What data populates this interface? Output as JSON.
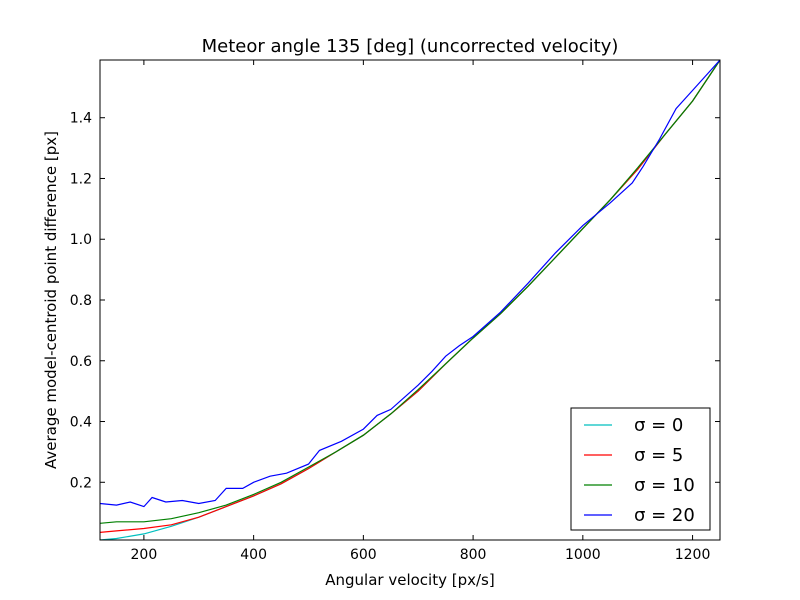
{
  "chart_data": {
    "type": "line",
    "title": "Meteor angle 135 [deg] (uncorrected velocity)",
    "xlabel": "Angular velocity [px/s]",
    "ylabel": "Average model-centroid point difference [px]",
    "xlim": [
      120,
      1250
    ],
    "ylim": [
      0.01,
      1.59
    ],
    "xticks": [
      200,
      400,
      600,
      800,
      1000,
      1200
    ],
    "yticks": [
      0.2,
      0.4,
      0.6,
      0.8,
      1.0,
      1.2,
      1.4
    ],
    "xtick_labels": [
      "200",
      "400",
      "600",
      "800",
      "1000",
      "1200"
    ],
    "ytick_labels": [
      "0.2",
      "0.4",
      "0.6",
      "0.8",
      "1.0",
      "1.2",
      "1.4"
    ],
    "grid": false,
    "legend_position": "lower-right",
    "colors": {
      "sigma0": "#00bfbf",
      "sigma5": "#ff0000",
      "sigma10": "#008000",
      "sigma20": "#0000ff"
    },
    "series": [
      {
        "name": "σ = 0",
        "color": "#00bfbf",
        "x": [
          120,
          150,
          200,
          250,
          300,
          350,
          400,
          450,
          500,
          550,
          600,
          650,
          700,
          750,
          800,
          850,
          900,
          950,
          1000,
          1050,
          1100,
          1150,
          1200,
          1250
        ],
        "y": [
          0.01,
          0.015,
          0.03,
          0.055,
          0.085,
          0.12,
          0.155,
          0.195,
          0.245,
          0.3,
          0.355,
          0.425,
          0.5,
          0.59,
          0.675,
          0.755,
          0.845,
          0.94,
          1.035,
          1.13,
          1.23,
          1.345,
          1.455,
          1.59
        ]
      },
      {
        "name": "σ = 5",
        "color": "#ff0000",
        "x": [
          120,
          150,
          200,
          250,
          300,
          350,
          400,
          450,
          500,
          550,
          600,
          650,
          700,
          750,
          800,
          850,
          900,
          950,
          1000,
          1050,
          1100,
          1150,
          1200,
          1250
        ],
        "y": [
          0.035,
          0.04,
          0.048,
          0.06,
          0.085,
          0.12,
          0.155,
          0.195,
          0.245,
          0.3,
          0.355,
          0.425,
          0.5,
          0.59,
          0.675,
          0.755,
          0.845,
          0.94,
          1.035,
          1.13,
          1.23,
          1.345,
          1.455,
          1.59
        ]
      },
      {
        "name": "σ = 10",
        "color": "#008000",
        "x": [
          120,
          150,
          200,
          250,
          300,
          350,
          400,
          450,
          500,
          550,
          600,
          650,
          700,
          750,
          800,
          850,
          900,
          950,
          1000,
          1050,
          1100,
          1150,
          1200,
          1250
        ],
        "y": [
          0.065,
          0.07,
          0.07,
          0.08,
          0.1,
          0.125,
          0.16,
          0.2,
          0.25,
          0.3,
          0.355,
          0.425,
          0.505,
          0.59,
          0.675,
          0.755,
          0.845,
          0.94,
          1.035,
          1.13,
          1.235,
          1.345,
          1.455,
          1.59
        ]
      },
      {
        "name": "σ = 20",
        "color": "#0000ff",
        "x": [
          120,
          150,
          175,
          200,
          215,
          240,
          270,
          300,
          330,
          350,
          380,
          400,
          430,
          460,
          500,
          520,
          560,
          600,
          625,
          650,
          700,
          725,
          750,
          775,
          800,
          850,
          900,
          950,
          1000,
          1050,
          1090,
          1110,
          1140,
          1170,
          1200,
          1250
        ],
        "y": [
          0.13,
          0.125,
          0.135,
          0.12,
          0.15,
          0.135,
          0.14,
          0.13,
          0.14,
          0.18,
          0.18,
          0.2,
          0.22,
          0.23,
          0.26,
          0.305,
          0.335,
          0.375,
          0.42,
          0.44,
          0.52,
          0.565,
          0.615,
          0.65,
          0.68,
          0.76,
          0.855,
          0.955,
          1.045,
          1.12,
          1.185,
          1.24,
          1.33,
          1.43,
          1.49,
          1.59
        ]
      }
    ]
  }
}
